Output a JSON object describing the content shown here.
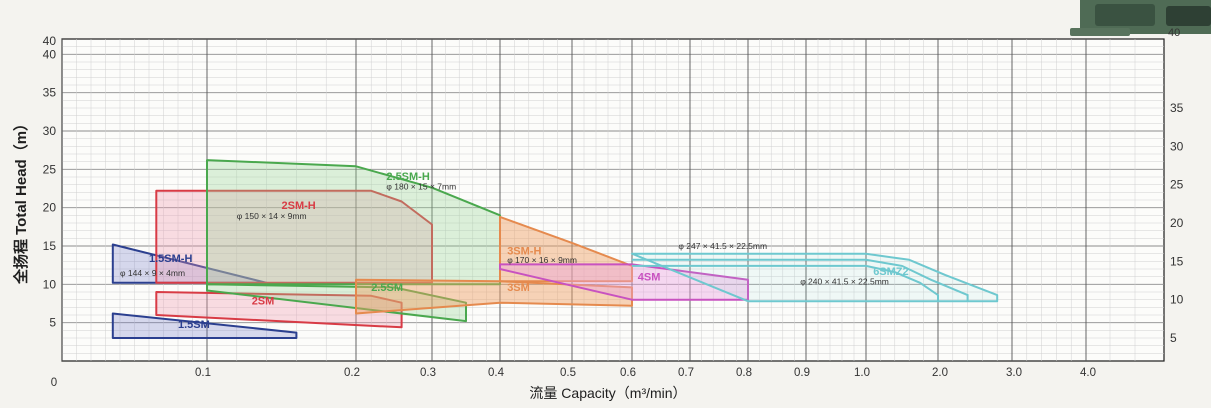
{
  "chart_data": {
    "type": "area",
    "title": "",
    "xlabel": "流量 Capacity（m³/min）",
    "ylabel": "全扬程 Total Head（m）",
    "x_ticks": [
      "0",
      "0.1",
      "0.2",
      "0.3",
      "0.4",
      "0.5",
      "0.6",
      "0.7",
      "0.8",
      "0.9",
      "1.0",
      "2.0",
      "3.0",
      "4.0"
    ],
    "y_ticks_left": [
      "5",
      "10",
      "15",
      "20",
      "25",
      "30",
      "35",
      "40"
    ],
    "y_ticks_right": [
      "5",
      "10",
      "15",
      "20",
      "25",
      "30",
      "35",
      "40"
    ],
    "y_extra_label": "40",
    "ylim": [
      0,
      42
    ],
    "grid": true,
    "series": [
      {
        "name": "1.5SM-H",
        "annotation": "φ 144 × 9 × 4mm",
        "color": "#2b3f8f",
        "fill": "rgba(110,120,200,0.28)",
        "points": [
          [
            0.035,
            15.2
          ],
          [
            0.035,
            10.2
          ],
          [
            0.14,
            10.2
          ]
        ]
      },
      {
        "name": "1.5SM",
        "annotation": "",
        "color": "#2b3f8f",
        "fill": "rgba(110,120,200,0.28)",
        "points": [
          [
            0.035,
            6.2
          ],
          [
            0.035,
            3.0
          ],
          [
            0.16,
            3.0
          ],
          [
            0.16,
            3.7
          ]
        ]
      },
      {
        "name": "2SM-H",
        "annotation": "φ 150 × 14 × 9mm",
        "color": "#d83b45",
        "fill": "rgba(238,150,175,0.32)",
        "points": [
          [
            0.065,
            22.2
          ],
          [
            0.22,
            22.2
          ],
          [
            0.26,
            20.8
          ],
          [
            0.3,
            17.8
          ],
          [
            0.3,
            10.2
          ],
          [
            0.065,
            10.2
          ]
        ]
      },
      {
        "name": "2SM",
        "annotation": "",
        "color": "#d83b45",
        "fill": "rgba(238,150,175,0.32)",
        "points": [
          [
            0.065,
            9.0
          ],
          [
            0.22,
            8.5
          ],
          [
            0.26,
            7.6
          ],
          [
            0.26,
            4.4
          ],
          [
            0.065,
            6.0
          ]
        ]
      },
      {
        "name": "2.5SM-H",
        "annotation": "φ 180 × 15 × 7mm",
        "color": "#4aa84e",
        "fill": "rgba(150,210,150,0.32)",
        "points": [
          [
            0.1,
            26.2
          ],
          [
            0.2,
            25.4
          ],
          [
            0.3,
            22.6
          ],
          [
            0.4,
            19.0
          ],
          [
            0.4,
            10.0
          ],
          [
            0.1,
            10.0
          ]
        ]
      },
      {
        "name": "2.5SM",
        "annotation": "",
        "color": "#4aa84e",
        "fill": "rgba(150,210,150,0.32)",
        "points": [
          [
            0.1,
            10.0
          ],
          [
            0.25,
            9.6
          ],
          [
            0.35,
            7.6
          ],
          [
            0.35,
            5.2
          ],
          [
            0.1,
            9.2
          ]
        ]
      },
      {
        "name": "3SM-H",
        "annotation": "φ 170 × 16 × 9mm",
        "color": "#e58a4e",
        "fill": "rgba(240,160,100,0.45)",
        "points": [
          [
            0.4,
            18.8
          ],
          [
            0.5,
            15.4
          ],
          [
            0.6,
            12.4
          ],
          [
            0.6,
            10.4
          ],
          [
            0.4,
            10.4
          ]
        ]
      },
      {
        "name": "3SM",
        "annotation": "",
        "color": "#e58a4e",
        "fill": "rgba(240,160,100,0.45)",
        "points": [
          [
            0.2,
            10.6
          ],
          [
            0.4,
            10.4
          ],
          [
            0.6,
            9.6
          ],
          [
            0.6,
            7.2
          ],
          [
            0.4,
            7.6
          ],
          [
            0.2,
            6.2
          ]
        ]
      },
      {
        "name": "4SM",
        "annotation": "",
        "color": "#c852c0",
        "fill": "rgba(235,160,225,0.40)",
        "points": [
          [
            0.4,
            12.6
          ],
          [
            0.6,
            12.6
          ],
          [
            0.8,
            10.6
          ],
          [
            0.8,
            8.0
          ],
          [
            0.6,
            8.0
          ],
          [
            0.4,
            12.0
          ]
        ]
      },
      {
        "name": "6SMZ2",
        "annotation": "φ 240 × 41.5 × 22.5mm",
        "annotation2": "φ 247 × 41.5 × 22.5mm",
        "color": "#6ec8cf",
        "fill": "rgba(150,220,225,0.12)",
        "points": [
          [
            0.6,
            14.0
          ],
          [
            1.0,
            14.0
          ],
          [
            1.6,
            13.2
          ],
          [
            2.1,
            11.2
          ],
          [
            2.8,
            8.6
          ],
          [
            2.8,
            7.8
          ],
          [
            0.8,
            7.8
          ]
        ]
      }
    ]
  },
  "photo": {
    "description_icon": "pump-photo"
  }
}
